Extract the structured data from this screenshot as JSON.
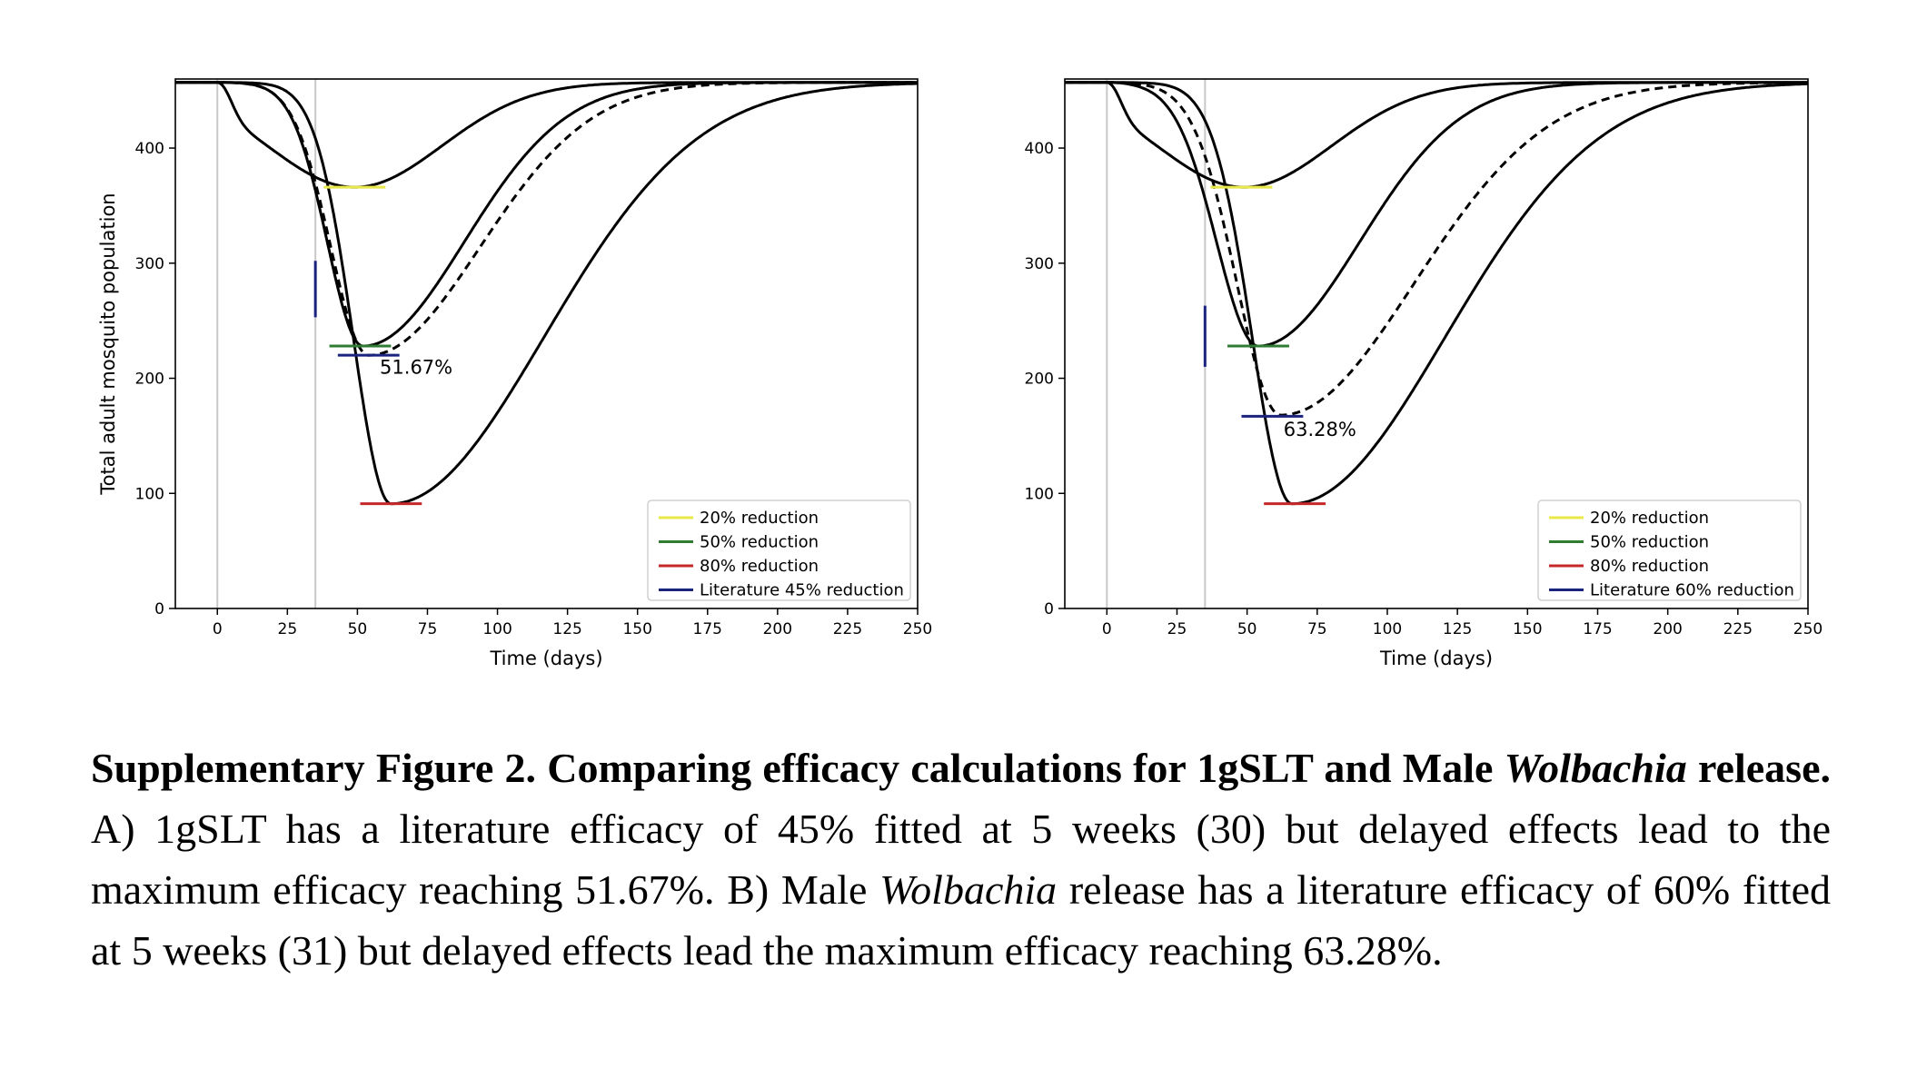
{
  "chart_data": [
    {
      "type": "line",
      "ylabel": "Total adult mosquito population",
      "xlabel": "Time (days)",
      "xlim": [
        -15,
        250
      ],
      "ylim": [
        0,
        460
      ],
      "xticks": [
        0,
        25,
        50,
        75,
        100,
        125,
        150,
        175,
        200,
        225,
        250
      ],
      "yticks": [
        0,
        100,
        200,
        300,
        400
      ],
      "vlines": [
        0,
        35
      ],
      "baseline": 457,
      "series": [
        {
          "style": "solid",
          "min": 366,
          "min_day": 49,
          "rise": 44,
          "fall": 44
        },
        {
          "style": "solid",
          "min": 228,
          "min_day": 52,
          "rise": 18,
          "fall": 51
        },
        {
          "style": "dashed",
          "min": 220,
          "min_day": 54,
          "rise": 19,
          "fall": 56
        },
        {
          "style": "solid",
          "min": 91,
          "min_day": 62,
          "rise": 19,
          "fall": 77
        }
      ],
      "reference_lines": [
        {
          "y": 366,
          "x": [
            38,
            60
          ],
          "color": "#e8e84a"
        },
        {
          "y": 228,
          "x": [
            40,
            62
          ],
          "color": "#2e7d32"
        },
        {
          "y": 91,
          "x": [
            51,
            73
          ],
          "color": "#c62828"
        },
        {
          "y": 220,
          "x": [
            43,
            65
          ],
          "color": "#1a237e"
        }
      ],
      "marker_line": {
        "x": 35,
        "y": [
          253,
          302
        ],
        "color": "#1a237e"
      },
      "annotation": {
        "text": "51.67%",
        "x": 58,
        "y": 204
      },
      "legend": {
        "position": "lower-right",
        "entries": [
          {
            "label": "20% reduction",
            "color": "#e8e84a"
          },
          {
            "label": "50% reduction",
            "color": "#2e7d32"
          },
          {
            "label": "80% reduction",
            "color": "#c62828"
          },
          {
            "label": "Literature 45% reduction",
            "color": "#1a237e"
          }
        ]
      }
    },
    {
      "type": "line",
      "ylabel": "",
      "xlabel": "Time (days)",
      "xlim": [
        -15,
        250
      ],
      "ylim": [
        0,
        460
      ],
      "xticks": [
        0,
        25,
        50,
        75,
        100,
        125,
        150,
        175,
        200,
        225,
        250
      ],
      "yticks": [
        0,
        100,
        200,
        300,
        400
      ],
      "vlines": [
        0,
        35
      ],
      "baseline": 457,
      "series": [
        {
          "style": "solid",
          "min": 366,
          "min_day": 49,
          "rise": 44,
          "fall": 44
        },
        {
          "style": "solid",
          "min": 228,
          "min_day": 54,
          "rise": 21,
          "fall": 51
        },
        {
          "style": "dashed",
          "min": 168,
          "min_day": 62,
          "rise": 22,
          "fall": 67
        },
        {
          "style": "solid",
          "min": 91,
          "min_day": 66,
          "rise": 20,
          "fall": 77
        }
      ],
      "reference_lines": [
        {
          "y": 366,
          "x": [
            37,
            59
          ],
          "color": "#e8e84a"
        },
        {
          "y": 228,
          "x": [
            43,
            65
          ],
          "color": "#2e7d32"
        },
        {
          "y": 91,
          "x": [
            56,
            78
          ],
          "color": "#c62828"
        },
        {
          "y": 167,
          "x": [
            48,
            70
          ],
          "color": "#1a237e"
        }
      ],
      "marker_line": {
        "x": 35,
        "y": [
          210,
          263
        ],
        "color": "#1a237e"
      },
      "annotation": {
        "text": "63.28%",
        "x": 63,
        "y": 150
      },
      "legend": {
        "position": "lower-right",
        "entries": [
          {
            "label": "20% reduction",
            "color": "#e8e84a"
          },
          {
            "label": "50% reduction",
            "color": "#2e7d32"
          },
          {
            "label": "80% reduction",
            "color": "#c62828"
          },
          {
            "label": "Literature 60% reduction",
            "color": "#1a237e"
          }
        ]
      }
    }
  ],
  "caption": {
    "bold_lead": "Supplementary Figure 2. Comparing efficacy calculations for 1gSLT and Male",
    "bold_italic": "Wolbachia",
    "bold_tail": " release.",
    "text_a": " A) 1gSLT has a literature efficacy of 45% fitted at 5 weeks (30) but delayed effects lead to the maximum efficacy reaching 51.67%. B) Male ",
    "italic_b": "Wolbachia",
    "text_b": " release has a literature efficacy of 60% fitted at 5 weeks (31) but delayed effects lead the maximum efficacy reaching 63.28%."
  }
}
